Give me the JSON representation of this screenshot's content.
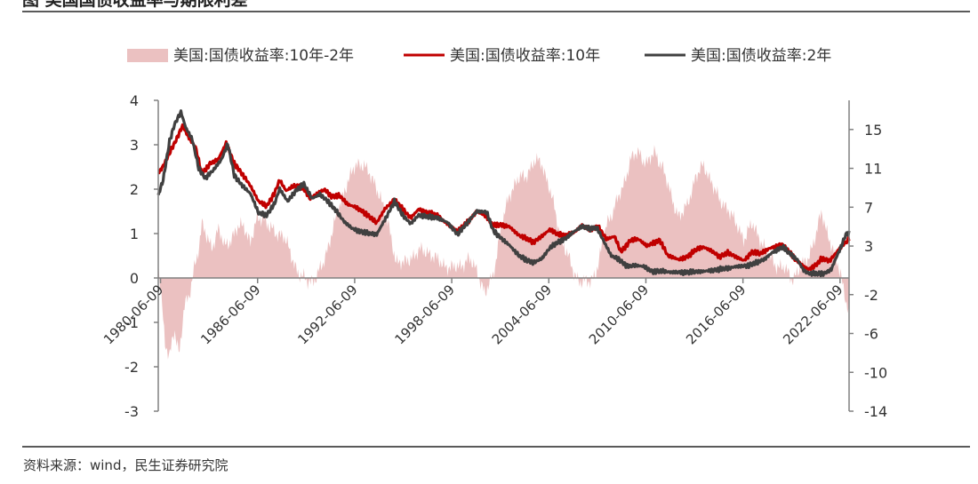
{
  "page": {
    "title": "图    美国国债收益率与期限利差",
    "source": "资料来源：wind，民生证券研究院"
  },
  "colors": {
    "spread": "#ebc1c1",
    "y10": "#c00000",
    "y2": "#404040",
    "axis": "#808080",
    "text": "#333333"
  },
  "chart_data": {
    "type": "area+line",
    "title": "",
    "legend": [
      {
        "name": "美国:国债收益率:10年-2年",
        "kind": "area",
        "axis": "left"
      },
      {
        "name": "美国:国债收益率:10年",
        "kind": "line",
        "axis": "right"
      },
      {
        "name": "美国:国债收益率:2年",
        "kind": "line",
        "axis": "right"
      }
    ],
    "left_axis": {
      "min": -3,
      "max": 4,
      "ticks": [
        "4",
        "3",
        "2",
        "1",
        "0",
        "-1",
        "-2",
        "-3"
      ]
    },
    "right_axis": {
      "min": -14,
      "max": 18,
      "ticks": [
        "15",
        "11",
        "7",
        "3",
        "-2",
        "-6",
        "-10",
        "-14"
      ]
    },
    "x_axis": {
      "start": 1980.3,
      "end": 2023.0,
      "tick_years": [
        1980.44,
        1986.44,
        1992.44,
        1998.44,
        2004.44,
        2010.44,
        2016.44,
        2022.44
      ],
      "tick_labels": [
        "1980-06-09",
        "1986-06-09",
        "1992-06-09",
        "1998-06-09",
        "2004-06-09",
        "2010-06-09",
        "2016-06-09",
        "2022-06-09"
      ]
    },
    "series": [
      {
        "name": "美国:国债收益率:10年-2年",
        "points": [
          [
            1980.3,
            0.3
          ],
          [
            1980.5,
            -0.4
          ],
          [
            1980.7,
            -1.4
          ],
          [
            1981.0,
            -1.8
          ],
          [
            1981.3,
            -1.2
          ],
          [
            1981.6,
            -1.7
          ],
          [
            1981.9,
            -0.6
          ],
          [
            1982.2,
            -0.5
          ],
          [
            1982.5,
            0.2
          ],
          [
            1982.8,
            0.7
          ],
          [
            1983.0,
            1.2
          ],
          [
            1983.3,
            0.9
          ],
          [
            1983.6,
            0.7
          ],
          [
            1984.0,
            1.1
          ],
          [
            1984.4,
            0.7
          ],
          [
            1984.8,
            0.9
          ],
          [
            1985.2,
            1.1
          ],
          [
            1985.6,
            1.2
          ],
          [
            1986.0,
            0.8
          ],
          [
            1986.4,
            1.3
          ],
          [
            1986.8,
            1.4
          ],
          [
            1987.2,
            1.1
          ],
          [
            1987.6,
            1.0
          ],
          [
            1988.0,
            1.0
          ],
          [
            1988.5,
            0.5
          ],
          [
            1989.0,
            0.1
          ],
          [
            1989.5,
            -0.1
          ],
          [
            1990.0,
            0.0
          ],
          [
            1990.5,
            0.3
          ],
          [
            1991.0,
            1.0
          ],
          [
            1991.5,
            1.6
          ],
          [
            1992.0,
            2.2
          ],
          [
            1992.5,
            2.5
          ],
          [
            1993.0,
            2.6
          ],
          [
            1993.5,
            2.2
          ],
          [
            1994.0,
            1.9
          ],
          [
            1994.5,
            1.2
          ],
          [
            1995.0,
            0.4
          ],
          [
            1995.5,
            0.3
          ],
          [
            1996.0,
            0.5
          ],
          [
            1996.5,
            0.6
          ],
          [
            1997.0,
            0.6
          ],
          [
            1997.5,
            0.4
          ],
          [
            1998.0,
            0.3
          ],
          [
            1998.5,
            0.2
          ],
          [
            1999.0,
            0.3
          ],
          [
            1999.5,
            0.4
          ],
          [
            2000.0,
            0.2
          ],
          [
            2000.5,
            -0.4
          ],
          [
            2001.0,
            0.1
          ],
          [
            2001.5,
            1.1
          ],
          [
            2002.0,
            1.9
          ],
          [
            2002.5,
            2.2
          ],
          [
            2003.0,
            2.3
          ],
          [
            2003.5,
            2.6
          ],
          [
            2004.0,
            2.6
          ],
          [
            2004.5,
            2.0
          ],
          [
            2005.0,
            1.2
          ],
          [
            2005.5,
            0.6
          ],
          [
            2006.0,
            0.1
          ],
          [
            2006.5,
            -0.1
          ],
          [
            2007.0,
            -0.1
          ],
          [
            2007.5,
            0.3
          ],
          [
            2008.0,
            1.2
          ],
          [
            2008.5,
            1.6
          ],
          [
            2009.0,
            2.0
          ],
          [
            2009.5,
            2.7
          ],
          [
            2010.0,
            2.8
          ],
          [
            2010.5,
            2.6
          ],
          [
            2011.0,
            2.8
          ],
          [
            2011.5,
            2.5
          ],
          [
            2012.0,
            1.8
          ],
          [
            2012.5,
            1.4
          ],
          [
            2013.0,
            1.6
          ],
          [
            2013.5,
            2.3
          ],
          [
            2014.0,
            2.5
          ],
          [
            2014.5,
            2.2
          ],
          [
            2015.0,
            1.7
          ],
          [
            2015.5,
            1.6
          ],
          [
            2016.0,
            1.2
          ],
          [
            2016.5,
            0.9
          ],
          [
            2017.0,
            1.2
          ],
          [
            2017.5,
            0.9
          ],
          [
            2018.0,
            0.5
          ],
          [
            2018.5,
            0.3
          ],
          [
            2019.0,
            0.2
          ],
          [
            2019.5,
            0.0
          ],
          [
            2020.0,
            0.2
          ],
          [
            2020.5,
            0.5
          ],
          [
            2021.0,
            1.0
          ],
          [
            2021.3,
            1.5
          ],
          [
            2021.6,
            1.1
          ],
          [
            2022.0,
            0.6
          ],
          [
            2022.5,
            0.1
          ],
          [
            2022.8,
            -0.5
          ],
          [
            2023.0,
            -0.8
          ]
        ]
      },
      {
        "name": "美国:国债收益率:10年",
        "points": [
          [
            1980.3,
            10.5
          ],
          [
            1980.6,
            11.2
          ],
          [
            1981.0,
            12.6
          ],
          [
            1981.4,
            13.9
          ],
          [
            1981.8,
            15.4
          ],
          [
            1982.2,
            14.1
          ],
          [
            1982.6,
            13.2
          ],
          [
            1983.0,
            10.4
          ],
          [
            1983.5,
            11.5
          ],
          [
            1984.0,
            11.9
          ],
          [
            1984.5,
            13.6
          ],
          [
            1985.0,
            11.5
          ],
          [
            1985.5,
            10.4
          ],
          [
            1986.0,
            9.2
          ],
          [
            1986.5,
            7.6
          ],
          [
            1987.0,
            7.1
          ],
          [
            1987.5,
            8.5
          ],
          [
            1987.8,
            9.8
          ],
          [
            1988.2,
            8.7
          ],
          [
            1988.7,
            9.2
          ],
          [
            1989.2,
            9.1
          ],
          [
            1989.7,
            7.9
          ],
          [
            1990.2,
            8.5
          ],
          [
            1990.6,
            8.8
          ],
          [
            1991.0,
            8.1
          ],
          [
            1991.5,
            8.2
          ],
          [
            1992.0,
            7.3
          ],
          [
            1992.5,
            7.0
          ],
          [
            1993.0,
            6.5
          ],
          [
            1993.5,
            5.8
          ],
          [
            1993.8,
            5.4
          ],
          [
            1994.3,
            6.8
          ],
          [
            1994.9,
            7.8
          ],
          [
            1995.3,
            7.0
          ],
          [
            1995.9,
            5.9
          ],
          [
            1996.4,
            6.8
          ],
          [
            1997.0,
            6.4
          ],
          [
            1997.5,
            6.2
          ],
          [
            1998.0,
            5.5
          ],
          [
            1998.8,
            4.5
          ],
          [
            1999.5,
            5.6
          ],
          [
            2000.0,
            6.6
          ],
          [
            2000.6,
            6.0
          ],
          [
            2001.0,
            5.1
          ],
          [
            2001.5,
            5.2
          ],
          [
            2002.0,
            5.0
          ],
          [
            2002.6,
            4.1
          ],
          [
            2003.0,
            3.8
          ],
          [
            2003.5,
            3.4
          ],
          [
            2004.0,
            4.0
          ],
          [
            2004.5,
            4.7
          ],
          [
            2005.0,
            4.2
          ],
          [
            2005.5,
            4.1
          ],
          [
            2006.0,
            4.4
          ],
          [
            2006.5,
            5.1
          ],
          [
            2007.0,
            4.7
          ],
          [
            2007.5,
            5.0
          ],
          [
            2008.0,
            3.7
          ],
          [
            2008.5,
            4.0
          ],
          [
            2008.9,
            2.4
          ],
          [
            2009.5,
            3.6
          ],
          [
            2010.0,
            3.7
          ],
          [
            2010.5,
            3.0
          ],
          [
            2011.0,
            3.4
          ],
          [
            2011.3,
            3.6
          ],
          [
            2011.8,
            2.0
          ],
          [
            2012.5,
            1.6
          ],
          [
            2013.0,
            1.9
          ],
          [
            2013.5,
            2.6
          ],
          [
            2014.0,
            2.9
          ],
          [
            2014.5,
            2.5
          ],
          [
            2015.0,
            1.9
          ],
          [
            2015.5,
            2.3
          ],
          [
            2016.0,
            1.9
          ],
          [
            2016.5,
            1.5
          ],
          [
            2017.0,
            2.4
          ],
          [
            2017.5,
            2.2
          ],
          [
            2018.0,
            2.7
          ],
          [
            2018.8,
            3.2
          ],
          [
            2019.3,
            2.4
          ],
          [
            2019.7,
            1.6
          ],
          [
            2020.2,
            0.9
          ],
          [
            2020.5,
            0.6
          ],
          [
            2021.0,
            1.1
          ],
          [
            2021.3,
            1.7
          ],
          [
            2021.8,
            1.5
          ],
          [
            2022.2,
            2.3
          ],
          [
            2022.6,
            3.1
          ],
          [
            2023.0,
            3.7
          ]
        ]
      },
      {
        "name": "美国:国债收益率:2年",
        "points": [
          [
            1980.3,
            8.2
          ],
          [
            1980.6,
            9.8
          ],
          [
            1981.0,
            13.8
          ],
          [
            1981.3,
            15.5
          ],
          [
            1981.7,
            16.8
          ],
          [
            1982.0,
            15.2
          ],
          [
            1982.4,
            14.0
          ],
          [
            1982.8,
            11.0
          ],
          [
            1983.2,
            10.0
          ],
          [
            1983.7,
            10.8
          ],
          [
            1984.2,
            11.9
          ],
          [
            1984.6,
            13.5
          ],
          [
            1985.0,
            10.3
          ],
          [
            1985.5,
            9.2
          ],
          [
            1986.0,
            8.4
          ],
          [
            1986.5,
            6.4
          ],
          [
            1987.0,
            6.2
          ],
          [
            1987.5,
            7.4
          ],
          [
            1987.8,
            8.9
          ],
          [
            1988.3,
            7.6
          ],
          [
            1988.8,
            8.7
          ],
          [
            1989.3,
            9.4
          ],
          [
            1989.8,
            7.9
          ],
          [
            1990.3,
            8.3
          ],
          [
            1990.8,
            7.6
          ],
          [
            1991.3,
            6.6
          ],
          [
            1991.8,
            5.5
          ],
          [
            1992.3,
            4.8
          ],
          [
            1992.8,
            4.5
          ],
          [
            1993.3,
            4.3
          ],
          [
            1993.8,
            4.2
          ],
          [
            1994.4,
            6.0
          ],
          [
            1994.9,
            7.6
          ],
          [
            1995.4,
            6.2
          ],
          [
            1995.9,
            5.3
          ],
          [
            1996.4,
            6.2
          ],
          [
            1997.0,
            6.0
          ],
          [
            1997.6,
            5.9
          ],
          [
            1998.2,
            5.4
          ],
          [
            1998.8,
            4.2
          ],
          [
            1999.5,
            5.6
          ],
          [
            2000.0,
            6.6
          ],
          [
            2000.6,
            6.5
          ],
          [
            2001.0,
            4.6
          ],
          [
            2001.5,
            3.8
          ],
          [
            2002.0,
            3.1
          ],
          [
            2002.6,
            2.0
          ],
          [
            2003.0,
            1.6
          ],
          [
            2003.5,
            1.3
          ],
          [
            2004.0,
            1.7
          ],
          [
            2004.5,
            2.8
          ],
          [
            2005.0,
            3.4
          ],
          [
            2005.5,
            3.8
          ],
          [
            2006.0,
            4.5
          ],
          [
            2006.5,
            5.0
          ],
          [
            2007.0,
            4.8
          ],
          [
            2007.4,
            4.9
          ],
          [
            2007.9,
            3.3
          ],
          [
            2008.3,
            2.0
          ],
          [
            2008.8,
            1.6
          ],
          [
            2009.3,
            0.9
          ],
          [
            2009.8,
            1.0
          ],
          [
            2010.3,
            0.9
          ],
          [
            2010.8,
            0.4
          ],
          [
            2011.5,
            0.4
          ],
          [
            2012.0,
            0.3
          ],
          [
            2013.0,
            0.3
          ],
          [
            2014.0,
            0.4
          ],
          [
            2015.0,
            0.6
          ],
          [
            2015.5,
            0.7
          ],
          [
            2016.0,
            0.9
          ],
          [
            2016.8,
            1.0
          ],
          [
            2017.3,
            1.3
          ],
          [
            2017.8,
            1.7
          ],
          [
            2018.3,
            2.4
          ],
          [
            2018.9,
            2.9
          ],
          [
            2019.3,
            2.3
          ],
          [
            2019.8,
            1.6
          ],
          [
            2020.2,
            0.5
          ],
          [
            2020.5,
            0.2
          ],
          [
            2021.0,
            0.13
          ],
          [
            2021.5,
            0.2
          ],
          [
            2021.9,
            0.6
          ],
          [
            2022.2,
            1.8
          ],
          [
            2022.5,
            2.9
          ],
          [
            2022.8,
            4.2
          ],
          [
            2023.0,
            4.3
          ]
        ]
      }
    ]
  }
}
